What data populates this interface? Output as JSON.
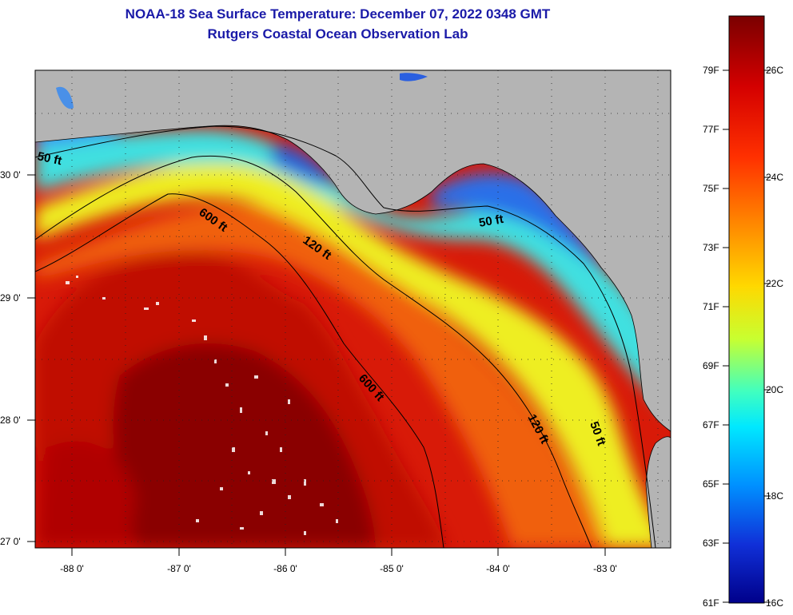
{
  "title": {
    "line1": "NOAA-18 Sea Surface Temperature:  December 07, 2022 0348 GMT",
    "line2": "Rutgers Coastal Ocean Observation Lab"
  },
  "lat_labels": [
    "30 0'",
    "29 0'",
    "28 0'",
    "27 0'"
  ],
  "lon_labels": [
    "-88 0'",
    "-87 0'",
    "-86 0'",
    "-85 0'",
    "-84 0'",
    "-83 0'"
  ],
  "contour_labels": {
    "c50_west": "50 ft",
    "c50_east": "50 ft",
    "c50_south": "50 ft",
    "c120_north": "120 ft",
    "c120_south": "120 ft",
    "c600_north": "600 ft",
    "c600_south": "600 ft"
  },
  "colorbar": {
    "fahrenheit": [
      "79F",
      "77F",
      "75F",
      "73F",
      "71F",
      "69F",
      "67F",
      "65F",
      "63F",
      "61F"
    ],
    "celsius": [
      "26C",
      "24C",
      "22C",
      "20C",
      "18C",
      "16C"
    ]
  },
  "colors": {
    "land": "#b4b4b4",
    "title": "#1a1aa8",
    "warm_core": "#8a0000",
    "warm": "#e0200c",
    "orange": "#f47c10",
    "yellow": "#f2e818",
    "cyan": "#36d4e8",
    "blue": "#2868e0"
  }
}
